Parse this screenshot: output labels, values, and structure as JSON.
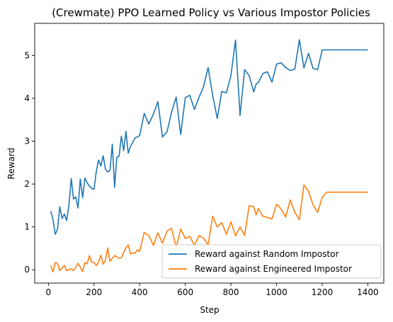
{
  "chart_data": {
    "type": "line",
    "title": "(Crewmate) PPO Learned Policy vs Various Impostor Policies",
    "xlabel": "Step",
    "ylabel": "Reward",
    "xlim": [
      -60,
      1470
    ],
    "ylim": [
      -0.31,
      5.75
    ],
    "xticks": [
      0,
      200,
      400,
      600,
      800,
      1000,
      1200,
      1400
    ],
    "yticks": [
      0,
      1,
      2,
      3,
      4,
      5
    ],
    "grid": false,
    "legend_position": "lower-right",
    "series": [
      {
        "name": "Reward against Random Impostor",
        "color": "#1f77b4",
        "x": [
          10,
          20,
          30,
          40,
          50,
          60,
          70,
          80,
          90,
          100,
          110,
          120,
          130,
          140,
          150,
          160,
          170,
          180,
          190,
          200,
          210,
          220,
          230,
          240,
          250,
          260,
          270,
          280,
          290,
          300,
          310,
          320,
          330,
          340,
          350,
          360,
          370,
          380,
          390,
          400,
          420,
          440,
          460,
          480,
          500,
          520,
          540,
          560,
          580,
          600,
          620,
          640,
          660,
          680,
          700,
          720,
          740,
          760,
          780,
          800,
          820,
          840,
          860,
          880,
          900,
          910,
          920,
          940,
          960,
          980,
          1000,
          1020,
          1040,
          1060,
          1080,
          1100,
          1120,
          1140,
          1160,
          1180,
          1200,
          1220,
          1240,
          1260,
          1280,
          1300,
          1320,
          1340,
          1360,
          1380,
          1400
        ],
        "y": [
          1.37,
          1.18,
          0.83,
          0.94,
          1.47,
          1.2,
          1.3,
          1.15,
          1.5,
          2.13,
          1.65,
          1.7,
          1.44,
          2.12,
          1.68,
          2.14,
          2.03,
          1.95,
          1.9,
          1.88,
          2.3,
          2.56,
          2.42,
          2.66,
          2.35,
          2.28,
          2.32,
          2.93,
          1.92,
          2.63,
          2.65,
          3.12,
          2.78,
          3.23,
          2.72,
          2.88,
          2.98,
          3.08,
          3.1,
          3.13,
          3.65,
          3.4,
          3.63,
          3.92,
          3.1,
          3.22,
          3.68,
          4.03,
          3.16,
          4.02,
          4.07,
          3.74,
          4.02,
          4.27,
          4.72,
          4.07,
          3.53,
          4.16,
          4.13,
          4.53,
          5.36,
          3.6,
          4.67,
          4.53,
          4.15,
          4.33,
          4.37,
          4.58,
          4.62,
          4.38,
          4.8,
          4.83,
          4.72,
          4.65,
          4.68,
          5.37,
          4.71,
          5.05,
          4.7,
          4.67,
          5.13,
          5.13,
          5.13,
          5.13,
          5.13,
          5.13,
          5.13,
          5.13,
          5.13,
          5.13,
          5.13
        ]
      },
      {
        "name": "Reward against Engineered Impostor",
        "color": "#ff7f0e",
        "x": [
          10,
          20,
          30,
          40,
          50,
          60,
          70,
          80,
          90,
          100,
          110,
          120,
          130,
          140,
          150,
          160,
          170,
          180,
          190,
          200,
          210,
          220,
          230,
          240,
          250,
          260,
          270,
          280,
          290,
          300,
          310,
          320,
          330,
          340,
          350,
          360,
          370,
          380,
          390,
          400,
          420,
          440,
          460,
          480,
          500,
          520,
          540,
          560,
          580,
          600,
          620,
          640,
          660,
          680,
          700,
          720,
          740,
          760,
          780,
          800,
          820,
          840,
          860,
          880,
          900,
          910,
          920,
          940,
          960,
          980,
          1000,
          1020,
          1040,
          1060,
          1080,
          1100,
          1120,
          1140,
          1160,
          1180,
          1200,
          1220,
          1240,
          1260,
          1280,
          1300,
          1320,
          1340,
          1360,
          1380,
          1400
        ],
        "y": [
          0.1,
          -0.05,
          0.17,
          0.15,
          -0.02,
          0.05,
          0.1,
          -0.02,
          0.01,
          0.02,
          -0.02,
          0.06,
          0.15,
          0.06,
          -0.04,
          0.17,
          0.14,
          0.33,
          0.18,
          0.17,
          0.1,
          0.18,
          0.34,
          0.13,
          0.22,
          0.51,
          0.2,
          0.27,
          0.33,
          0.3,
          0.27,
          0.28,
          0.41,
          0.51,
          0.58,
          0.37,
          0.39,
          0.39,
          0.47,
          0.43,
          0.87,
          0.8,
          0.57,
          0.86,
          0.62,
          0.9,
          0.97,
          0.52,
          0.95,
          0.73,
          0.78,
          0.57,
          0.8,
          0.74,
          0.58,
          1.25,
          1.0,
          1.1,
          0.83,
          1.12,
          0.79,
          1.0,
          0.8,
          1.5,
          1.47,
          1.28,
          1.43,
          1.25,
          1.22,
          1.19,
          1.53,
          1.42,
          1.23,
          1.63,
          1.34,
          1.17,
          1.98,
          1.83,
          1.52,
          1.34,
          1.69,
          1.81,
          1.81,
          1.81,
          1.81,
          1.81,
          1.81,
          1.81,
          1.81,
          1.81,
          1.81
        ]
      }
    ]
  }
}
